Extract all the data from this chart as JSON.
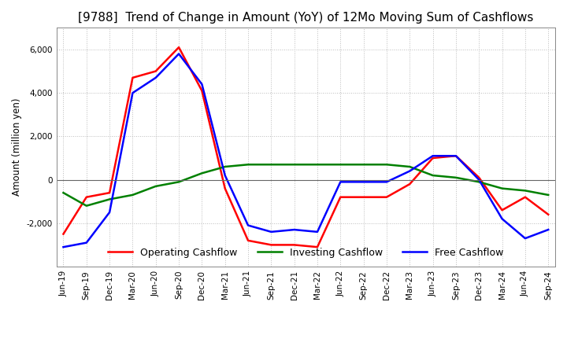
{
  "title": "[9788]  Trend of Change in Amount (YoY) of 12Mo Moving Sum of Cashflows",
  "ylabel": "Amount (million yen)",
  "x_labels": [
    "Jun-19",
    "Sep-19",
    "Dec-19",
    "Mar-20",
    "Jun-20",
    "Sep-20",
    "Dec-20",
    "Mar-21",
    "Jun-21",
    "Sep-21",
    "Dec-21",
    "Mar-22",
    "Jun-22",
    "Sep-22",
    "Dec-22",
    "Mar-23",
    "Jun-23",
    "Sep-23",
    "Dec-23",
    "Mar-24",
    "Jun-24",
    "Sep-24"
  ],
  "operating_cashflow": [
    -2500,
    -800,
    -600,
    4700,
    5000,
    6100,
    4100,
    -400,
    -2800,
    -3000,
    -3000,
    -3100,
    -800,
    -800,
    -800,
    -200,
    1000,
    1100,
    100,
    -1400,
    -800,
    -1600
  ],
  "investing_cashflow": [
    -600,
    -1200,
    -900,
    -700,
    -300,
    -100,
    300,
    600,
    700,
    700,
    700,
    700,
    700,
    700,
    700,
    600,
    200,
    100,
    -100,
    -400,
    -500,
    -700
  ],
  "free_cashflow": [
    -3100,
    -2900,
    -1500,
    4000,
    4700,
    5800,
    4400,
    200,
    -2100,
    -2400,
    -2300,
    -2400,
    -100,
    -100,
    -100,
    400,
    1100,
    1100,
    0,
    -1800,
    -2700,
    -2300
  ],
  "colors": {
    "operating": "#ff0000",
    "investing": "#008000",
    "free": "#0000ff"
  },
  "ylim": [
    -4000,
    7000
  ],
  "yticks": [
    -2000,
    0,
    2000,
    4000,
    6000
  ],
  "background_color": "#ffffff",
  "grid_color": "#bbbbbb",
  "title_fontsize": 11,
  "legend_labels": [
    "Operating Cashflow",
    "Investing Cashflow",
    "Free Cashflow"
  ]
}
